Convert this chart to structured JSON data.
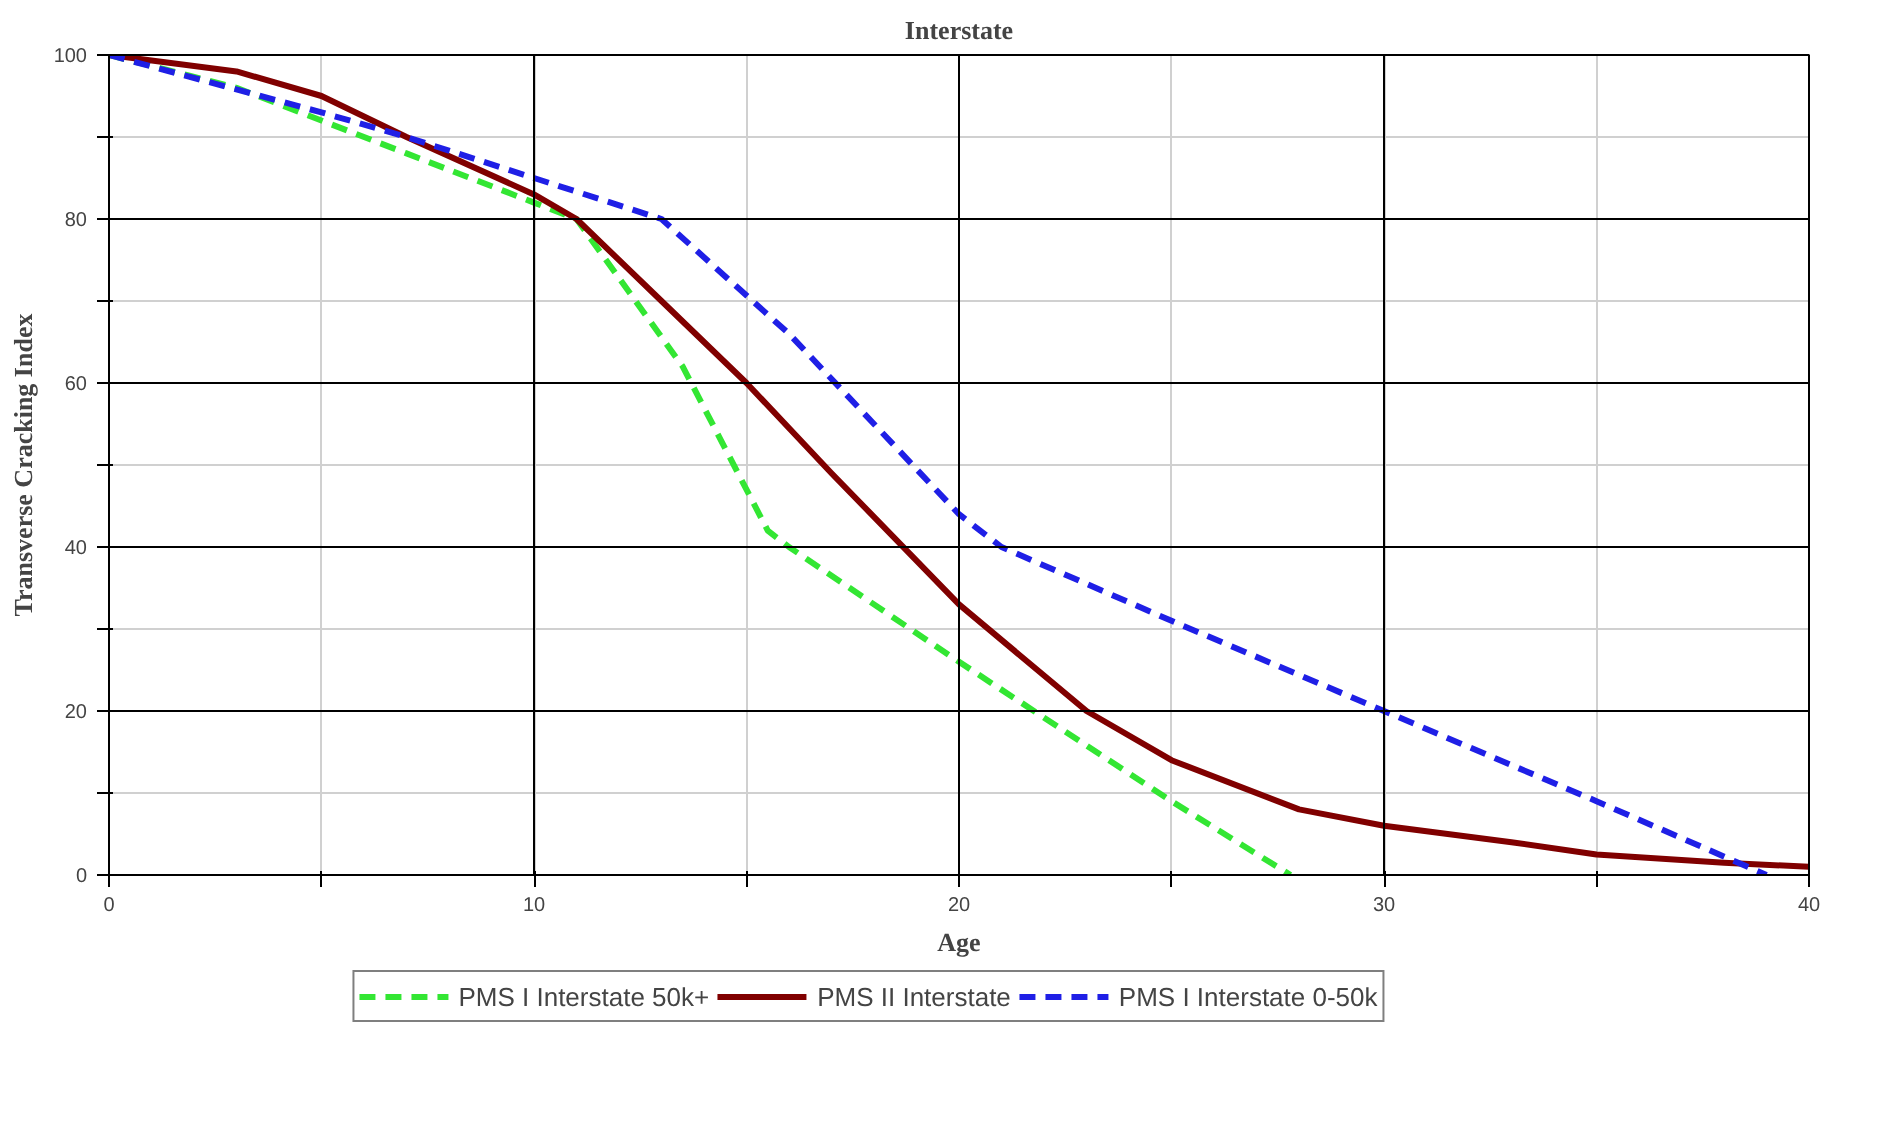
{
  "chart_data": {
    "type": "line",
    "title": "Interstate",
    "xlabel": "Age",
    "ylabel": "Transverse Cracking Index",
    "xlim": [
      0,
      40
    ],
    "ylim": [
      0,
      100
    ],
    "xticks": [
      0,
      {
        "value": 5,
        "label": null
      },
      10,
      {
        "value": 15,
        "label": null
      },
      20,
      {
        "value": 25,
        "label": null
      },
      30,
      {
        "value": 35,
        "label": null
      },
      40
    ],
    "yticks": [
      0,
      {
        "value": 10,
        "label": null
      },
      20,
      {
        "value": 30,
        "label": null
      },
      40,
      {
        "value": 50,
        "label": null
      },
      60,
      {
        "value": 70,
        "label": null
      },
      80,
      {
        "value": 90,
        "label": null
      },
      100
    ],
    "grid": true,
    "legend": "bottom",
    "marker": "none",
    "series": [
      {
        "name": "PMS I Interstate 50k+",
        "color": "#33e633",
        "line_style": "dashed",
        "x": [
          0,
          3,
          7,
          10,
          11,
          13.5,
          15.5,
          16,
          20,
          25,
          27.8
        ],
        "values": [
          100,
          96,
          88,
          82,
          80,
          62,
          42,
          40,
          26,
          9,
          0
        ]
      },
      {
        "name": "PMS II Interstate",
        "color": "#800000",
        "line_style": "solid",
        "x": [
          0,
          3,
          5,
          7,
          10,
          11,
          13,
          15,
          17,
          20,
          23,
          25,
          28,
          30,
          33,
          35,
          38,
          40
        ],
        "values": [
          100,
          98,
          95,
          90,
          83,
          80,
          70,
          60,
          49,
          33,
          20,
          14,
          8,
          6,
          4,
          2.5,
          1.5,
          1
        ]
      },
      {
        "name": "PMS I Interstate 0-50k",
        "color": "#1f1fe6",
        "line_style": "dashed",
        "x": [
          0,
          5,
          7,
          10,
          13,
          16,
          20,
          21,
          25,
          30,
          35,
          39
        ],
        "values": [
          100,
          93,
          90,
          85,
          80,
          66,
          44,
          40,
          31,
          20,
          9,
          0
        ]
      }
    ]
  }
}
